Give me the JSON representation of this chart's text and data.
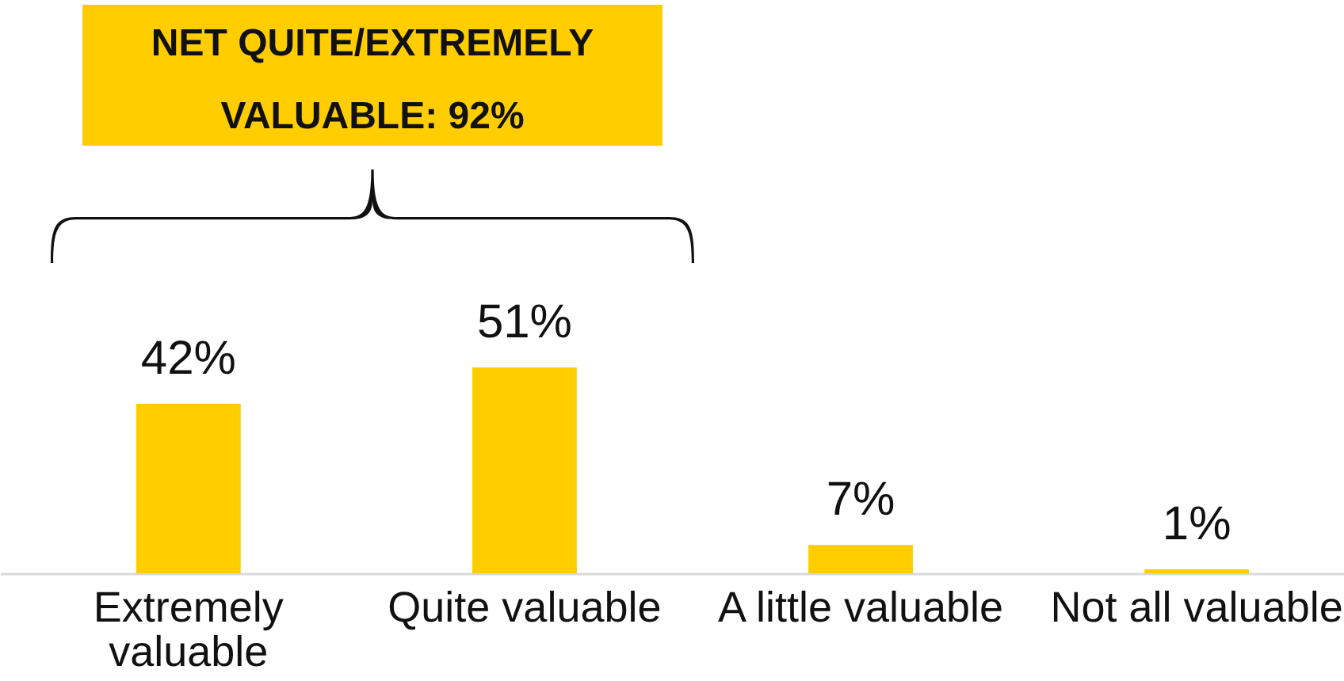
{
  "chart_data": {
    "type": "bar",
    "categories": [
      "Extremely valuable",
      "Quite valuable",
      "A little valuable",
      "Not all valuable"
    ],
    "values": [
      42,
      51,
      7,
      1
    ],
    "value_labels": [
      "42%",
      "51%",
      "7%",
      "1%"
    ],
    "color": "#ffcd00",
    "annotations": [
      "NET QUITE/EXTREMELY VALUABLE: 92%"
    ]
  }
}
